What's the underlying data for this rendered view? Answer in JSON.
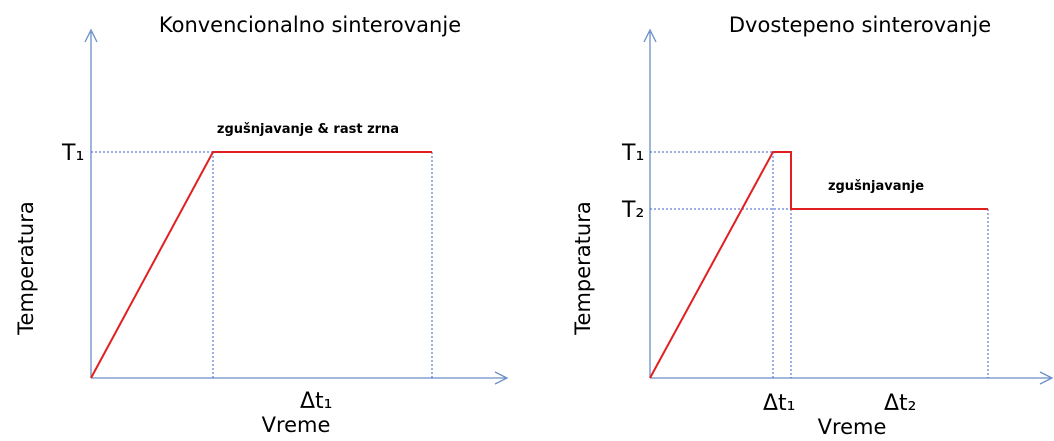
{
  "panels": [
    {
      "title": "Konvencionalno sinterovanje",
      "y_axis_label": "Temperatura",
      "x_axis_label": "Vreme",
      "level_labels": [
        "T₁"
      ],
      "interval_labels": [
        "Δt₁"
      ],
      "annotation": "zgušnjavanje & rast zrna"
    },
    {
      "title": "Dvostepeno sinterovanje",
      "y_axis_label": "Temperatura",
      "x_axis_label": "Vreme",
      "level_labels": [
        "T₁",
        "T₂"
      ],
      "interval_labels": [
        "Δt₁",
        "Δt₂"
      ],
      "annotation": "zgušnjavanje"
    }
  ]
}
